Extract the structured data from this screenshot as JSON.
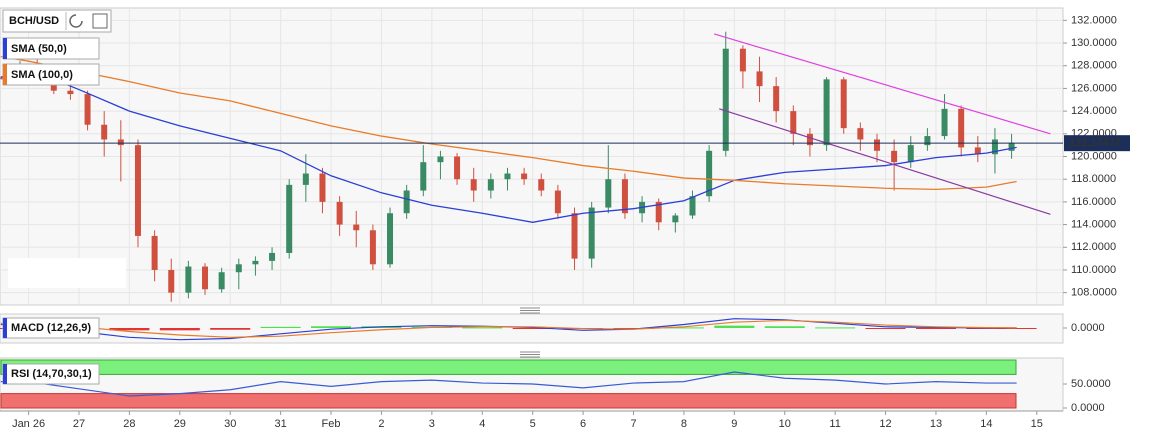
{
  "chart_data": {
    "type": "candlestick",
    "symbol": "BCH/USD",
    "ylim": [
      107,
      133
    ],
    "yticks": [
      {
        "value": 108,
        "label": "108.0000"
      },
      {
        "value": 110,
        "label": "110.0000"
      },
      {
        "value": 112,
        "label": "112.0000"
      },
      {
        "value": 114,
        "label": "114.0000"
      },
      {
        "value": 116,
        "label": "116.0000"
      },
      {
        "value": 118,
        "label": "118.0000"
      },
      {
        "value": 120,
        "label": "120.0000"
      },
      {
        "value": 122,
        "label": "122.0000"
      },
      {
        "value": 124,
        "label": "124.0000"
      },
      {
        "value": 126,
        "label": "126.0000"
      },
      {
        "value": 128,
        "label": "128.0000"
      },
      {
        "value": 130,
        "label": "130.0000"
      },
      {
        "value": 132,
        "label": "132.0000"
      }
    ],
    "xlim": [
      -0.567,
      20.52
    ],
    "xticks": [
      {
        "value": 0,
        "label": "Jan 26"
      },
      {
        "value": 1,
        "label": "27"
      },
      {
        "value": 2,
        "label": "28"
      },
      {
        "value": 3,
        "label": "29"
      },
      {
        "value": 4,
        "label": "30"
      },
      {
        "value": 5,
        "label": "31"
      },
      {
        "value": 6,
        "label": "Feb"
      },
      {
        "value": 7,
        "label": "2"
      },
      {
        "value": 8,
        "label": "3"
      },
      {
        "value": 9,
        "label": "4"
      },
      {
        "value": 10,
        "label": "5"
      },
      {
        "value": 11,
        "label": "6"
      },
      {
        "value": 12,
        "label": "7"
      },
      {
        "value": 13,
        "label": "8"
      },
      {
        "value": 14,
        "label": "9"
      },
      {
        "value": 15,
        "label": "10"
      },
      {
        "value": 16,
        "label": "11"
      },
      {
        "value": 17,
        "label": "12"
      },
      {
        "value": 18,
        "label": "13"
      },
      {
        "value": 19,
        "label": "14"
      },
      {
        "value": 20,
        "label": "15"
      }
    ],
    "grid": true,
    "current_price": 121.17477,
    "up_color": "#3a8a64",
    "down_color": "#d0503f",
    "candles": {
      "x": [
        -0.5,
        -0.17,
        0.17,
        0.5,
        0.83,
        1.17,
        1.5,
        1.83,
        2.17,
        2.5,
        2.83,
        3.17,
        3.5,
        3.83,
        4.17,
        4.5,
        4.83,
        5.17,
        5.5,
        5.83,
        6.17,
        6.5,
        6.83,
        7.17,
        7.5,
        7.83,
        8.17,
        8.5,
        8.83,
        9.17,
        9.5,
        9.83,
        10.17,
        10.5,
        10.83,
        11.17,
        11.5,
        11.83,
        12.17,
        12.5,
        12.83,
        13.17,
        13.5,
        13.83,
        14.17,
        14.5,
        14.83,
        15.17,
        15.5,
        15.83,
        16.17,
        16.5,
        16.83,
        17.17,
        17.5,
        17.83,
        18.17,
        18.5,
        18.83,
        19.17,
        19.5
      ],
      "open": [
        127,
        126.8,
        128,
        127.2,
        125.8,
        125.5,
        122.8,
        121.5,
        121,
        113,
        110,
        108,
        110.3,
        108.3,
        109.8,
        110.5,
        110.8,
        111.5,
        117.5,
        118.5,
        116,
        114,
        113.5,
        110.5,
        115,
        117,
        119.5,
        120,
        118,
        117,
        118,
        118.5,
        118,
        117,
        115,
        111,
        115.5,
        118,
        115,
        116,
        114.2,
        114.8,
        116.5,
        120.5,
        129.5,
        127.5,
        126.2,
        124,
        122,
        121,
        126.8,
        122.5,
        121.5,
        120.5,
        119.5,
        121,
        121.8,
        124.2,
        120.8,
        120.2,
        120.5
      ],
      "high": [
        127.5,
        128.4,
        128.6,
        127.5,
        126.2,
        125.8,
        124,
        123.2,
        121.5,
        113.5,
        111,
        110.8,
        110.6,
        110.2,
        111,
        111.2,
        112,
        118,
        120.2,
        119,
        116.5,
        115.2,
        114,
        115.5,
        117.5,
        121,
        120.5,
        120.3,
        119,
        118.5,
        119,
        119,
        118.5,
        117.5,
        115.5,
        116,
        121,
        118.5,
        116.5,
        116.3,
        115,
        117,
        121,
        131,
        129.8,
        128.8,
        127,
        124.5,
        122.5,
        127,
        127,
        123,
        122,
        121.5,
        121.8,
        122.5,
        125.5,
        124.5,
        121.8,
        122.5,
        122
      ],
      "low": [
        126.3,
        126.5,
        126.8,
        125.5,
        125,
        122.3,
        120,
        117.8,
        112,
        109,
        107.2,
        107.5,
        107.8,
        108,
        108.3,
        109.5,
        110,
        111,
        116,
        115,
        113,
        112,
        110,
        110.2,
        114.5,
        116.5,
        118,
        117.5,
        116,
        116.3,
        117,
        117.5,
        116.5,
        114.5,
        110,
        110.2,
        115,
        114.5,
        114.2,
        113.5,
        113.3,
        114.5,
        116,
        120,
        126,
        124.8,
        123,
        121,
        120,
        120.5,
        122,
        120.5,
        119.5,
        117,
        119,
        120.5,
        121.5,
        120,
        119.5,
        118.5,
        119.8
      ],
      "close": [
        126.8,
        128,
        127.2,
        125.8,
        125.5,
        122.8,
        121.5,
        121,
        113,
        110,
        108,
        110.3,
        108.3,
        109.8,
        110.5,
        110.8,
        111.5,
        117.5,
        118.5,
        116,
        114,
        113.5,
        110.5,
        115,
        117,
        119.5,
        120,
        118,
        117,
        118,
        118.5,
        118,
        117,
        115,
        111,
        115.5,
        118,
        115,
        116,
        114.2,
        114.8,
        116.5,
        120.5,
        129.5,
        127.5,
        126.2,
        124,
        122,
        121,
        126.8,
        122.5,
        121.5,
        120.5,
        119.5,
        121,
        121.8,
        124.2,
        120.8,
        120.2,
        121.5,
        121.2
      ]
    },
    "indicator_x": [
      -0.55,
      0,
      1,
      2,
      3,
      4,
      5,
      6,
      7,
      8,
      9,
      10,
      11,
      12,
      13,
      14,
      15,
      16,
      17,
      18,
      19,
      19.6
    ],
    "overlays": [
      {
        "name": "SMA (50,0)",
        "color": "#2a3fd6",
        "values": [
          127,
          127.7,
          125.9,
          124,
          122.7,
          121.6,
          120.5,
          118.3,
          116.8,
          115.7,
          115,
          114.2,
          115,
          115.4,
          116.1,
          117.9,
          118.6,
          118.9,
          119.2,
          119.9,
          120.3,
          120.8
        ]
      },
      {
        "name": "SMA (100,0)",
        "color": "#e87c2a",
        "values": [
          128.8,
          128.4,
          127.5,
          126.6,
          125.6,
          124.9,
          123.8,
          122.7,
          121.8,
          121.1,
          120.5,
          119.9,
          119.2,
          118.7,
          118.1,
          117.9,
          117.6,
          117.4,
          117.2,
          117.1,
          117.3,
          117.8
        ]
      }
    ],
    "trendlines": [
      {
        "color": "#e040e0",
        "x": [
          13.6,
          20.27
        ],
        "y": [
          130.8,
          122
        ]
      },
      {
        "color": "#8b3aa0",
        "x": [
          13.7,
          20.27
        ],
        "y": [
          124.2,
          114.9
        ]
      }
    ],
    "macd": {
      "type": "line",
      "name": "MACD (12,26,9)",
      "ylim": [
        -1.2,
        1.2
      ],
      "yticks": [
        {
          "value": 0,
          "label": "0.0000"
        }
      ],
      "macd_color": "#2a3fd6",
      "signal_color": "#e87c2a",
      "macd": [
        0.3,
        0.2,
        -0.3,
        -0.8,
        -1.0,
        -0.9,
        -0.5,
        -0.1,
        0.1,
        0.2,
        0.15,
        0.05,
        -0.2,
        -0.1,
        0.3,
        0.8,
        0.7,
        0.4,
        0.1,
        0.05,
        0.0,
        0.0
      ],
      "signal": [
        0.4,
        0.35,
        0.1,
        -0.3,
        -0.6,
        -0.8,
        -0.7,
        -0.4,
        -0.15,
        0.05,
        0.12,
        0.1,
        -0.05,
        -0.1,
        0.1,
        0.5,
        0.65,
        0.5,
        0.25,
        0.1,
        0.03,
        0.01
      ],
      "histogram": [
        -0.05,
        -0.1,
        -0.15,
        -0.2,
        -0.2,
        -0.15,
        0.1,
        0.15,
        0.15,
        0.1,
        0.05,
        -0.02,
        -0.05,
        -0.05,
        0.05,
        0.2,
        0.15,
        0.05,
        -0.05,
        -0.08,
        -0.05,
        -0.03
      ],
      "pos_color": "#33dd33",
      "neg_color": "#e01010"
    },
    "rsi": {
      "type": "line",
      "name": "RSI (14,70,30,1)",
      "ylim": [
        0,
        100
      ],
      "yticks": [
        {
          "value": 0,
          "label": "0.0000"
        },
        {
          "value": 50,
          "label": "50.0000"
        }
      ],
      "overbought": 70,
      "oversold": 30,
      "ob_color": "#7cf07c",
      "os_color": "#f07070",
      "color": "#3a5bd6",
      "values": [
        55,
        55,
        40,
        25,
        30,
        38,
        55,
        45,
        55,
        58,
        52,
        50,
        42,
        52,
        55,
        75,
        62,
        58,
        50,
        55,
        52,
        52
      ]
    }
  }
}
